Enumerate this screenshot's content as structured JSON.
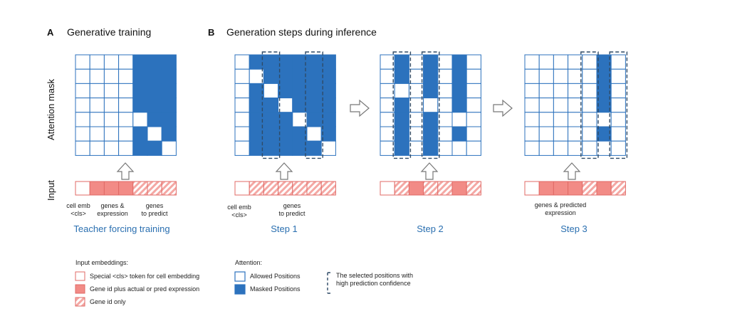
{
  "panels": {
    "a_letter": "A",
    "a_title": "Generative training",
    "b_letter": "B",
    "b_title": "Generation steps during inference"
  },
  "y_labels": {
    "attention": "Attention mask",
    "input": "Input"
  },
  "annotations": {
    "teacher_cell_emb": "cell emb",
    "teacher_cls": "<cls>",
    "teacher_genes_expr_1": "genes &",
    "teacher_genes_expr_2": "expression",
    "teacher_genes_pred_1": "genes",
    "teacher_genes_pred_2": "to predict",
    "step1_cell_emb": "cell emb",
    "step1_cls": "<cls>",
    "step1_genes_pred_1": "genes",
    "step1_genes_pred_2": "to predict",
    "step3_genes_pred_1": "genes & predicted",
    "step3_genes_pred_2": "expression"
  },
  "step_labels": [
    "Teacher forcing training",
    "Step 1",
    "Step 2",
    "Step 3"
  ],
  "legend": {
    "input_title": "Input embeddings:",
    "input_items": [
      "Special <cls> token for cell embedding",
      "Gene id plus actual or pred expression",
      "Gene id only"
    ],
    "attention_title": "Attention:",
    "attention_items": [
      "Allowed Positions",
      "Masked Positions"
    ],
    "selected_1": "The selected positions with",
    "selected_2": "high prediction confidence"
  },
  "colors": {
    "masked": "#2c72bd",
    "allowed": "#ffffff",
    "grid_border": "#2c72bd",
    "input_solid": "#f28b86",
    "input_hatch": "#f4a8a4",
    "input_border": "#e06a66",
    "dashed": "#2f4a66",
    "arrow": "#777777"
  },
  "matrices": {
    "teacher": [
      "0000111",
      "0000111",
      "0000111",
      "0000111",
      "0000011",
      "0000101",
      "0000110"
    ],
    "step1": [
      "0111111",
      "0011111",
      "0101111",
      "0110111",
      "0111011",
      "0111101",
      "0111110"
    ],
    "step2": [
      "0101010",
      "0101010",
      "0001010",
      "0100010",
      "0101000",
      "0101010",
      "0101000"
    ],
    "step3": [
      "0000010",
      "0000010",
      "0000010",
      "0000010",
      "0000000",
      "0000010",
      "0000000"
    ]
  },
  "inputs": {
    "teacher": [
      "cls",
      "solid",
      "solid",
      "solid",
      "hatch",
      "hatch",
      "hatch"
    ],
    "step1": [
      "cls",
      "hatch",
      "hatch",
      "hatch",
      "hatch",
      "hatch",
      "hatch"
    ],
    "step2": [
      "cls",
      "hatch",
      "solid",
      "hatch",
      "hatch",
      "solid",
      "hatch"
    ],
    "step3": [
      "cls",
      "solid",
      "solid",
      "solid",
      "hatch",
      "solid",
      "hatch"
    ]
  },
  "selected_columns": {
    "teacher": [],
    "step1": [
      2,
      5
    ],
    "step2": [
      1,
      3
    ],
    "step3": [
      4,
      6
    ]
  }
}
